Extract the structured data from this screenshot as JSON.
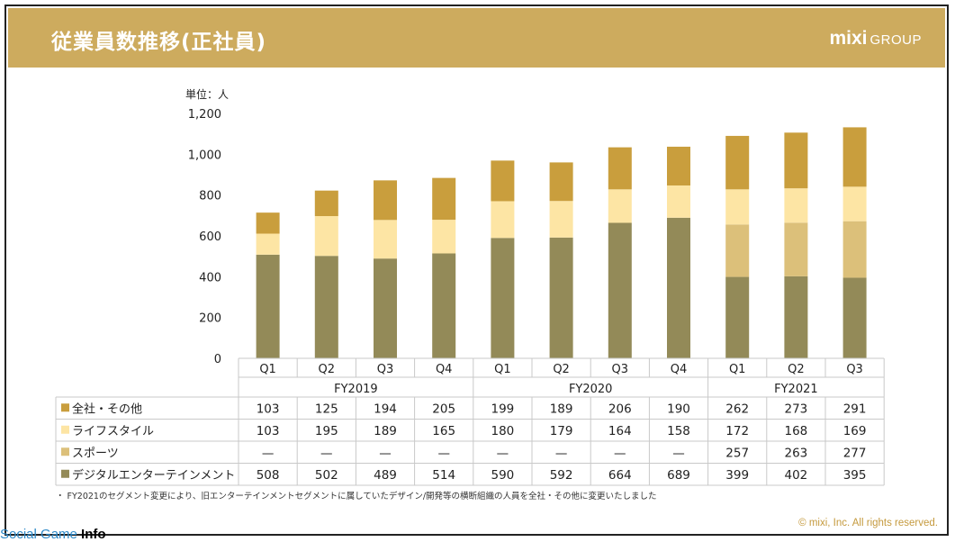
{
  "slide": {
    "title": "従業員数推移(正社員)",
    "brand_main": "mixi",
    "brand_sub": "GROUP",
    "unit_label": "単位：人",
    "footnote": "・ FY2021のセグメント変更により、旧エンターテインメントセグメントに属していたデザイン/開発等の横断組織の人員を全社・その他に変更いたしました",
    "copyright": "© mixi, Inc. All rights reserved.",
    "watermark_a": "Social Game ",
    "watermark_b": "Info"
  },
  "chart_data": {
    "type": "bar",
    "stacked": true,
    "categories": [
      "Q1",
      "Q2",
      "Q3",
      "Q4",
      "Q1",
      "Q2",
      "Q3",
      "Q4",
      "Q1",
      "Q2",
      "Q3"
    ],
    "groups": [
      {
        "label": "FY2019",
        "span": 4
      },
      {
        "label": "FY2020",
        "span": 4
      },
      {
        "label": "FY2021",
        "span": 3
      }
    ],
    "ylim": [
      0,
      1200
    ],
    "yticks": [
      "0",
      "200",
      "400",
      "600",
      "800",
      "1,000",
      "1,200"
    ],
    "grid": false,
    "series": [
      {
        "name": "デジタルエンターテインメント",
        "color": "#938a58",
        "values": [
          508,
          502,
          489,
          514,
          590,
          592,
          664,
          689,
          399,
          402,
          395
        ],
        "labels": [
          "508",
          "502",
          "489",
          "514",
          "590",
          "592",
          "664",
          "689",
          "399",
          "402",
          "395"
        ]
      },
      {
        "name": "スポーツ",
        "color": "#dcc07a",
        "values": [
          0,
          0,
          0,
          0,
          0,
          0,
          0,
          0,
          257,
          263,
          277
        ],
        "labels": [
          "—",
          "—",
          "—",
          "—",
          "—",
          "—",
          "—",
          "—",
          "257",
          "263",
          "277"
        ]
      },
      {
        "name": "ライフスタイル",
        "color": "#fde5a4",
        "values": [
          103,
          195,
          189,
          165,
          180,
          179,
          164,
          158,
          172,
          168,
          169
        ],
        "labels": [
          "103",
          "195",
          "189",
          "165",
          "180",
          "179",
          "164",
          "158",
          "172",
          "168",
          "169"
        ]
      },
      {
        "name": "全社・その他",
        "color": "#c99e3d",
        "values": [
          103,
          125,
          194,
          205,
          199,
          189,
          206,
          190,
          262,
          273,
          291
        ],
        "labels": [
          "103",
          "125",
          "194",
          "205",
          "199",
          "189",
          "206",
          "190",
          "262",
          "273",
          "291"
        ]
      }
    ],
    "table_order": [
      3,
      2,
      1,
      0
    ]
  }
}
